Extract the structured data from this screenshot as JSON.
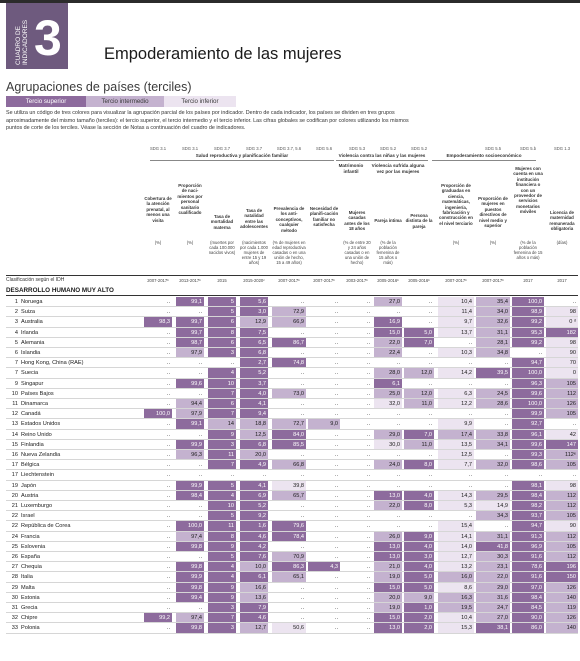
{
  "header": {
    "tab_label": "CUADRO DE INDICADORES",
    "tab_number": "3",
    "title": "Empoderamiento de las mujeres"
  },
  "intro": {
    "subtitle": "Agrupaciones de países (terciles)",
    "terciles": [
      "Tercio superior",
      "Tercio intermedio",
      "Tercio inferior"
    ],
    "text": "Se utiliza un código de tres colores para visualizar la agrupación parcial de los países por indicador. Dentro de cada indicador, los países se dividen en tres grupos aproximadamente del mismo tamaño (terciles): el tercio superior, el tercio intermedio y el tercio inferior. Las cifras globales se codifican por colores utilizando los mismos puntos de corte de los terciles. Véase la sección de Notas a continuación del cuadro de indicadores."
  },
  "groups": [
    "Salud reproductiva y planificación familiar",
    "Violencia contra las niñas y las mujeres",
    "Empoderamiento socioeconómico"
  ],
  "subgroups": [
    "Matrimonio infantil",
    "Violencia sufrida alguna vez por las mujeres"
  ],
  "column_codes": [
    "SDG 3.1",
    "SDG 3.1",
    "SDG 3.7",
    "SDG 3.7",
    "SDG 3.7, 5.6",
    "SDG 5.6",
    "SDG 5.3",
    "SDG 5.2",
    "SDG 5.2",
    "",
    "SDG 5.5",
    "SDG 5.b",
    "SDG 1.3"
  ],
  "columns": [
    {
      "head": "Cobertura de la atención prenatal, al menos una visita",
      "unit": "(%)",
      "year": "2007-2017ᵇ"
    },
    {
      "head": "Proporción de naci-mientos por personal sanitario cualificado",
      "unit": "(%)",
      "year": "2013-2017ᵇ"
    },
    {
      "head": "Tasa de mortalidad materna",
      "unit": "(muertes por cada 100.000 nacidos vivos)",
      "year": "2015"
    },
    {
      "head": "Tasa de natalidad entre las adolescentes",
      "unit": "(nacimientos por cada 1.000 mujeres de entre 15 y 19 años)",
      "year": "2015-2020ᶜ"
    },
    {
      "head": "Prevalencia de los anti-conceptivos, cualquier método",
      "unit": "(% de mujeres en edad reproductiva casadas o en una unión de hecho, 15 a 49 años)",
      "year": "2007-2017ᵇ"
    },
    {
      "head": "Necesidad de planifi-cación familiar no satisfecha",
      "unit": "",
      "year": "2007-2017ᵇ"
    },
    {
      "head": "Mujeres casadas antes de los 18 años",
      "unit": "(% de entre 20 y 24 años casadas o en una unión de hecho)",
      "year": "2003-2017ᵇ"
    },
    {
      "head": "Pareja íntima",
      "unit": "(% de la población femenina de 15 años o más)",
      "year": "2005-2016ᵇ"
    },
    {
      "head": "Persona distinta de la pareja",
      "unit": "",
      "year": "2005-2016ᵇ"
    },
    {
      "head": "Proporción de graduadas en ciencia, matemáticas, ingeniería, fabricación y construcción en el nivel terciario",
      "unit": "(%)",
      "year": "2007-2017ᵇ"
    },
    {
      "head": "Proporción de mujeres en puestos directivos de nivel medio y superior",
      "unit": "(%)",
      "year": "2007-2017ᵇ"
    },
    {
      "head": "Mujeres con cuenta en una institución financiera o con un proveedor de servicios monetarios móviles",
      "unit": "(% de la población femenina de 15 años o más)",
      "year": "2017"
    },
    {
      "head": "Licencia de maternidad remunerada obligatoria",
      "unit": "(días)",
      "year": "2017"
    }
  ],
  "classification_label": "Clasificación según el IDH",
  "section_label": "DESARROLLO HUMANO MUY ALTO",
  "rows": [
    {
      "rank": "1",
      "country": "Noruega",
      "v": [
        "..",
        "99,1",
        "5",
        "5,6",
        "..",
        "..",
        "..",
        "27,0",
        "..",
        "10,4",
        "35,4",
        "100,0",
        ".."
      ],
      "t": [
        0,
        1,
        1,
        1,
        0,
        0,
        0,
        2,
        0,
        3,
        2,
        1,
        0
      ]
    },
    {
      "rank": "2",
      "country": "Suiza",
      "v": [
        "..",
        "..",
        "5",
        "3,0",
        "72,9",
        "..",
        "..",
        "..",
        "..",
        "11,4",
        "34,0",
        "98,9",
        "98"
      ],
      "t": [
        0,
        0,
        1,
        1,
        2,
        0,
        0,
        0,
        0,
        3,
        2,
        1,
        3
      ]
    },
    {
      "rank": "3",
      "country": "Australia",
      "v": [
        "98,3",
        "99,7",
        "6",
        "12,9",
        "66,9",
        "..",
        "..",
        "16,9",
        "..",
        "9,7",
        "32,6",
        "99,2",
        "0 ᵈ"
      ],
      "t": [
        1,
        1,
        1,
        2,
        2,
        0,
        0,
        1,
        0,
        3,
        2,
        1,
        3
      ]
    },
    {
      "rank": "4",
      "country": "Irlanda",
      "v": [
        "..",
        "99,7",
        "8",
        "7,5",
        "..",
        "..",
        "..",
        "15,0",
        "5,0",
        "13,7",
        "31,1",
        "95,3",
        "182"
      ],
      "t": [
        0,
        1,
        1,
        1,
        0,
        0,
        0,
        1,
        1,
        3,
        2,
        1,
        1
      ]
    },
    {
      "rank": "5",
      "country": "Alemania",
      "v": [
        "..",
        "98,7",
        "6",
        "6,5",
        "86,7",
        "..",
        "..",
        "22,0",
        "7,0",
        "..",
        "28,1",
        "99,2",
        "98"
      ],
      "t": [
        0,
        1,
        1,
        1,
        1,
        0,
        0,
        2,
        1,
        0,
        2,
        1,
        3
      ]
    },
    {
      "rank": "6",
      "country": "Islandia",
      "v": [
        "..",
        "97,9",
        "3",
        "6,8",
        "..",
        "..",
        "..",
        "22,4",
        "..",
        "10,3",
        "34,8",
        "..",
        "90"
      ],
      "t": [
        0,
        2,
        1,
        1,
        0,
        0,
        0,
        2,
        0,
        3,
        2,
        0,
        3
      ]
    },
    {
      "rank": "7",
      "country": "Hong Kong, China (RAE)",
      "v": [
        "..",
        "..",
        "..",
        "2,7",
        "74,8",
        "..",
        "..",
        "..",
        "..",
        "..",
        "..",
        "94,7",
        "70"
      ],
      "t": [
        0,
        0,
        0,
        1,
        1,
        0,
        0,
        0,
        0,
        0,
        0,
        1,
        3
      ]
    },
    {
      "rank": "7",
      "country": "Suecia",
      "v": [
        "..",
        "..",
        "4",
        "5,2",
        "..",
        "..",
        "..",
        "28,0",
        "12,0",
        "14,2",
        "39,5",
        "100,0",
        "0"
      ],
      "t": [
        0,
        0,
        1,
        1,
        0,
        0,
        0,
        2,
        2,
        3,
        1,
        1,
        3
      ]
    },
    {
      "rank": "9",
      "country": "Singapur",
      "v": [
        "..",
        "99,6",
        "10",
        "3,7",
        "..",
        "..",
        "..",
        "6,1",
        "..",
        "..",
        "..",
        "96,3",
        "105"
      ],
      "t": [
        0,
        1,
        1,
        1,
        0,
        0,
        0,
        1,
        0,
        0,
        0,
        1,
        2
      ]
    },
    {
      "rank": "10",
      "country": "Países Bajos",
      "v": [
        "..",
        "..",
        "7",
        "4,0",
        "73,0",
        "..",
        "..",
        "25,0",
        "12,0",
        "6,3",
        "24,5",
        "99,6",
        "112"
      ],
      "t": [
        0,
        0,
        1,
        1,
        2,
        0,
        0,
        2,
        2,
        3,
        2,
        1,
        2
      ]
    },
    {
      "rank": "11",
      "country": "Dinamarca",
      "v": [
        "..",
        "94,4",
        "6",
        "4,1",
        "..",
        "..",
        "..",
        "32,0",
        "11,0",
        "12,2",
        "28,6",
        "100,0",
        "126"
      ],
      "t": [
        0,
        2,
        1,
        1,
        0,
        0,
        0,
        3,
        2,
        3,
        2,
        1,
        2
      ]
    },
    {
      "rank": "12",
      "country": "Canadá",
      "v": [
        "100,0",
        "97,9",
        "7",
        "9,4",
        "..",
        "..",
        "..",
        "..",
        "..",
        "..",
        "..",
        "99,9",
        "105"
      ],
      "t": [
        1,
        2,
        1,
        1,
        0,
        0,
        0,
        0,
        0,
        0,
        0,
        1,
        2
      ]
    },
    {
      "rank": "13",
      "country": "Estados Unidos",
      "v": [
        "..",
        "99,1",
        "14",
        "18,8",
        "72,7",
        "9,0",
        "..",
        "..",
        "..",
        "9,9",
        "..",
        "92,7",
        ".."
      ],
      "t": [
        0,
        1,
        2,
        2,
        2,
        2,
        0,
        0,
        0,
        3,
        0,
        1,
        0
      ]
    },
    {
      "rank": "14",
      "country": "Reino Unido",
      "v": [
        "..",
        "..",
        "9",
        "12,5",
        "84,0",
        "..",
        "..",
        "29,0",
        "7,0",
        "17,4",
        "33,8",
        "96,1",
        "42"
      ],
      "t": [
        0,
        0,
        1,
        2,
        1,
        0,
        0,
        2,
        1,
        2,
        2,
        1,
        3
      ]
    },
    {
      "rank": "15",
      "country": "Finlandia",
      "v": [
        "..",
        "99,9",
        "3",
        "6,8",
        "85,5",
        "..",
        "..",
        "30,0",
        "11,0",
        "13,5",
        "34,1",
        "99,6",
        "147"
      ],
      "t": [
        0,
        1,
        1,
        1,
        1,
        0,
        0,
        3,
        2,
        3,
        2,
        1,
        1
      ]
    },
    {
      "rank": "16",
      "country": "Nueva Zelandia",
      "v": [
        "..",
        "96,3",
        "11",
        "20,0",
        "..",
        "..",
        "..",
        "..",
        "..",
        "12,5",
        "..",
        "99,3",
        "112ᵉ"
      ],
      "t": [
        0,
        2,
        1,
        2,
        0,
        0,
        0,
        0,
        0,
        3,
        0,
        1,
        2
      ]
    },
    {
      "rank": "17",
      "country": "Bélgica",
      "v": [
        "..",
        "..",
        "7",
        "4,9",
        "66,8",
        "..",
        "..",
        "24,0",
        "8,0",
        "7,7",
        "32,0",
        "98,6",
        "105"
      ],
      "t": [
        0,
        0,
        1,
        1,
        2,
        0,
        0,
        2,
        1,
        3,
        2,
        1,
        2
      ]
    },
    {
      "rank": "17",
      "country": "Liechtenstein",
      "v": [
        "..",
        "..",
        "..",
        "..",
        "..",
        "..",
        "..",
        "..",
        "..",
        "..",
        "..",
        "..",
        ".."
      ],
      "t": [
        0,
        0,
        0,
        0,
        0,
        0,
        0,
        0,
        0,
        0,
        0,
        0,
        0
      ]
    },
    {
      "rank": "19",
      "country": "Japón",
      "v": [
        "..",
        "99,9",
        "5",
        "4,1",
        "39,8",
        "..",
        "..",
        "..",
        "..",
        "..",
        "..",
        "98,1",
        "98"
      ],
      "t": [
        0,
        1,
        1,
        1,
        3,
        0,
        0,
        0,
        0,
        0,
        0,
        1,
        3
      ]
    },
    {
      "rank": "20",
      "country": "Austria",
      "v": [
        "..",
        "98,4",
        "4",
        "6,9",
        "65,7",
        "..",
        "..",
        "13,0",
        "4,0",
        "14,3",
        "29,5",
        "98,4",
        "112"
      ],
      "t": [
        0,
        1,
        1,
        1,
        2,
        0,
        0,
        1,
        1,
        3,
        2,
        1,
        2
      ]
    },
    {
      "rank": "21",
      "country": "Luxemburgo",
      "v": [
        "..",
        "..",
        "10",
        "5,2",
        "..",
        "..",
        "..",
        "22,0",
        "8,0",
        "5,3",
        "14,9",
        "98,2",
        "112"
      ],
      "t": [
        0,
        0,
        1,
        1,
        0,
        0,
        0,
        2,
        1,
        3,
        3,
        1,
        2
      ]
    },
    {
      "rank": "22",
      "country": "Israel",
      "v": [
        "..",
        "..",
        "5",
        "9,2",
        "..",
        "..",
        "..",
        "..",
        "..",
        "..",
        "34,3",
        "93,7",
        "105"
      ],
      "t": [
        0,
        0,
        1,
        1,
        0,
        0,
        0,
        0,
        0,
        0,
        2,
        1,
        2
      ]
    },
    {
      "rank": "22",
      "country": "República de Corea",
      "v": [
        "..",
        "100,0",
        "11",
        "1,6",
        "79,6",
        "..",
        "..",
        "..",
        "..",
        "15,4",
        "..",
        "94,7",
        "90"
      ],
      "t": [
        0,
        1,
        1,
        1,
        1,
        0,
        0,
        0,
        0,
        3,
        0,
        1,
        3
      ]
    },
    {
      "rank": "24",
      "country": "Francia",
      "v": [
        "..",
        "97,4",
        "8",
        "4,6",
        "78,4",
        "..",
        "..",
        "26,0",
        "9,0",
        "14,1",
        "31,1",
        "91,3",
        "112"
      ],
      "t": [
        0,
        2,
        1,
        1,
        1,
        0,
        0,
        2,
        1,
        3,
        2,
        1,
        2
      ]
    },
    {
      "rank": "25",
      "country": "Eslovenia",
      "v": [
        "..",
        "99,8",
        "9",
        "4,2",
        "..",
        "..",
        "..",
        "13,0",
        "4,0",
        "14,0",
        "41,8",
        "96,9",
        "105"
      ],
      "t": [
        0,
        1,
        1,
        1,
        0,
        0,
        0,
        1,
        1,
        3,
        1,
        1,
        2
      ]
    },
    {
      "rank": "26",
      "country": "España",
      "v": [
        "..",
        "..",
        "5",
        "7,6",
        "70,9",
        "..",
        "..",
        "13,0",
        "3,0",
        "12,7",
        "30,3",
        "91,6",
        "112"
      ],
      "t": [
        0,
        0,
        1,
        1,
        2,
        0,
        0,
        1,
        1,
        3,
        2,
        1,
        2
      ]
    },
    {
      "rank": "27",
      "country": "Chequia",
      "v": [
        "..",
        "99,8",
        "4",
        "10,0",
        "86,3",
        "4,3",
        "..",
        "21,0",
        "4,0",
        "13,2",
        "23,1",
        "78,6",
        "196"
      ],
      "t": [
        0,
        1,
        1,
        2,
        1,
        1,
        0,
        2,
        1,
        3,
        2,
        1,
        1
      ]
    },
    {
      "rank": "28",
      "country": "Italia",
      "v": [
        "..",
        "99,9",
        "4",
        "6,1",
        "65,1",
        "..",
        "..",
        "19,0",
        "5,0",
        "16,0",
        "22,0",
        "91,6",
        "150"
      ],
      "t": [
        0,
        1,
        1,
        1,
        2,
        0,
        0,
        2,
        1,
        2,
        2,
        1,
        1
      ]
    },
    {
      "rank": "29",
      "country": "Malta",
      "v": [
        "..",
        "99,8",
        "9",
        "16,6",
        "..",
        "..",
        "..",
        "15,0",
        "5,0",
        "8,6",
        "29,0",
        "97,0",
        "126"
      ],
      "t": [
        0,
        1,
        1,
        2,
        0,
        0,
        0,
        1,
        1,
        3,
        2,
        1,
        2
      ]
    },
    {
      "rank": "30",
      "country": "Estonia",
      "v": [
        "..",
        "99,4",
        "9",
        "13,6",
        "..",
        "..",
        "..",
        "20,0",
        "9,0",
        "16,3",
        "31,6",
        "98,4",
        "140"
      ],
      "t": [
        0,
        1,
        1,
        2,
        0,
        0,
        0,
        2,
        2,
        2,
        2,
        1,
        2
      ]
    },
    {
      "rank": "31",
      "country": "Grecia",
      "v": [
        "..",
        "..",
        "3",
        "7,9",
        "..",
        "..",
        "..",
        "19,0",
        "1,0",
        "19,5",
        "24,7",
        "84,5",
        "119"
      ],
      "t": [
        0,
        0,
        1,
        1,
        0,
        0,
        0,
        2,
        1,
        2,
        2,
        1,
        2
      ]
    },
    {
      "rank": "32",
      "country": "Chipre",
      "v": [
        "99,2",
        "97,4",
        "7",
        "4,6",
        "..",
        "..",
        "..",
        "15,0",
        "2,0",
        "10,4",
        "27,0",
        "90,0",
        "126"
      ],
      "t": [
        1,
        2,
        1,
        1,
        0,
        0,
        0,
        1,
        1,
        3,
        2,
        1,
        2
      ]
    },
    {
      "rank": "33",
      "country": "Polonia",
      "v": [
        "..",
        "99,8",
        "3",
        "12,7",
        "50,6",
        "..",
        "..",
        "13,0",
        "2,0",
        "15,3",
        "38,1",
        "86,0",
        "140"
      ],
      "t": [
        0,
        1,
        1,
        2,
        3,
        0,
        0,
        1,
        1,
        3,
        1,
        1,
        2
      ]
    }
  ]
}
